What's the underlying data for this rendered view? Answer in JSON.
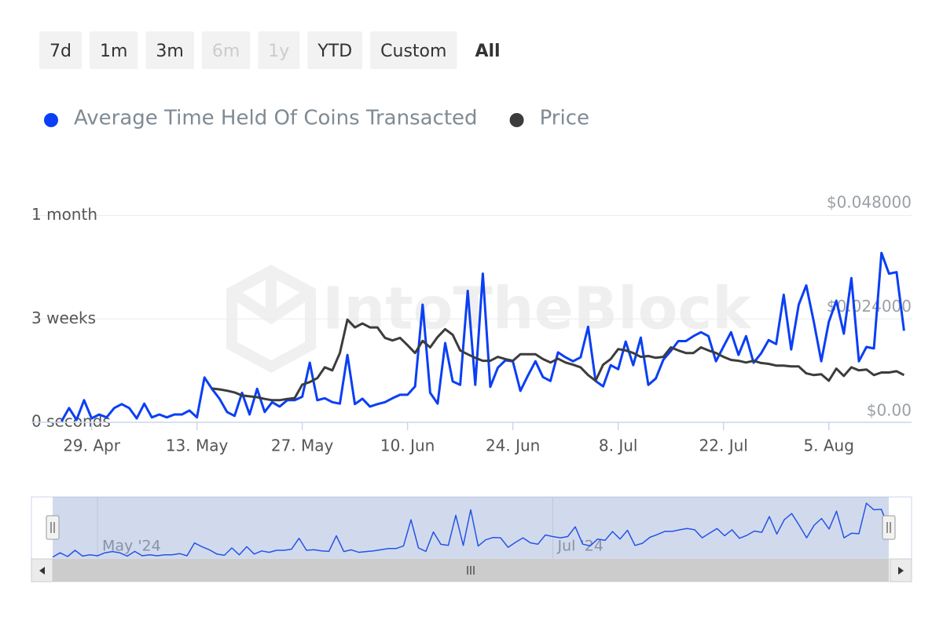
{
  "range_selector": {
    "buttons": [
      "7d",
      "1m",
      "3m",
      "6m",
      "1y",
      "YTD",
      "Custom",
      "All"
    ],
    "disabled": [
      3,
      4
    ],
    "selected": 7
  },
  "chart_data": {
    "type": "line",
    "watermark": "IntoTheBlock",
    "x": [
      "2024-04-25",
      "2024-04-26",
      "2024-04-27",
      "2024-04-28",
      "2024-04-29",
      "2024-04-30",
      "2024-05-01",
      "2024-05-02",
      "2024-05-03",
      "2024-05-04",
      "2024-05-05",
      "2024-05-06",
      "2024-05-07",
      "2024-05-08",
      "2024-05-09",
      "2024-05-10",
      "2024-05-11",
      "2024-05-12",
      "2024-05-13",
      "2024-05-14",
      "2024-05-15",
      "2024-05-16",
      "2024-05-17",
      "2024-05-18",
      "2024-05-19",
      "2024-05-20",
      "2024-05-21",
      "2024-05-22",
      "2024-05-23",
      "2024-05-24",
      "2024-05-25",
      "2024-05-26",
      "2024-05-27",
      "2024-05-28",
      "2024-05-29",
      "2024-05-30",
      "2024-05-31",
      "2024-06-01",
      "2024-06-02",
      "2024-06-03",
      "2024-06-04",
      "2024-06-05",
      "2024-06-06",
      "2024-06-07",
      "2024-06-08",
      "2024-06-09",
      "2024-06-10",
      "2024-06-11",
      "2024-06-12",
      "2024-06-13",
      "2024-06-14",
      "2024-06-15",
      "2024-06-16",
      "2024-06-17",
      "2024-06-18",
      "2024-06-19",
      "2024-06-20",
      "2024-06-21",
      "2024-06-22",
      "2024-06-23",
      "2024-06-24",
      "2024-06-25",
      "2024-06-26",
      "2024-06-27",
      "2024-06-28",
      "2024-06-29",
      "2024-06-30",
      "2024-07-01",
      "2024-07-02",
      "2024-07-03",
      "2024-07-04",
      "2024-07-05",
      "2024-07-06",
      "2024-07-07",
      "2024-07-08",
      "2024-07-09",
      "2024-07-10",
      "2024-07-11",
      "2024-07-12",
      "2024-07-13",
      "2024-07-14",
      "2024-07-15",
      "2024-07-16",
      "2024-07-17",
      "2024-07-18",
      "2024-07-19",
      "2024-07-20",
      "2024-07-21",
      "2024-07-22",
      "2024-07-23",
      "2024-07-24",
      "2024-07-25",
      "2024-07-26",
      "2024-07-27",
      "2024-07-28",
      "2024-07-29",
      "2024-07-30",
      "2024-07-31",
      "2024-08-01",
      "2024-08-02",
      "2024-08-03",
      "2024-08-04",
      "2024-08-05",
      "2024-08-06",
      "2024-08-07",
      "2024-08-08",
      "2024-08-09",
      "2024-08-10",
      "2024-08-11",
      "2024-08-12",
      "2024-08-13",
      "2024-08-14",
      "2024-08-15"
    ],
    "series": [
      {
        "name": "Average Time Held Of Coins Transacted",
        "color": "#0a3ff5",
        "values": [
          0.2,
          2.9,
          0.5,
          4.5,
          0.8,
          1.6,
          1.0,
          2.9,
          3.7,
          2.9,
          0.8,
          3.8,
          1.0,
          1.6,
          1.0,
          1.6,
          1.6,
          2.4,
          1.0,
          9.1,
          6.8,
          4.8,
          2.1,
          1.3,
          6.0,
          1.6,
          6.8,
          2.1,
          4.1,
          3.2,
          4.5,
          4.5,
          5.2,
          12.1,
          4.5,
          4.9,
          4.1,
          3.8,
          13.7,
          3.7,
          4.8,
          3.2,
          3.7,
          4.1,
          4.9,
          5.6,
          5.6,
          7.3,
          23.9,
          6.0,
          3.8,
          16.1,
          8.3,
          7.6,
          26.7,
          7.6,
          30.2,
          7.2,
          11.1,
          12.6,
          12.4,
          6.4,
          9.5,
          12.4,
          9.2,
          8.4,
          14.2,
          13.2,
          12.4,
          13.2,
          19.4,
          8.4,
          7.3,
          11.6,
          10.8,
          16.4,
          11.6,
          17.2,
          7.6,
          8.9,
          12.7,
          14.5,
          16.5,
          16.5,
          17.5,
          18.3,
          17.5,
          12.4,
          15.4,
          18.3,
          13.7,
          17.5,
          12.1,
          14.0,
          16.7,
          15.9,
          25.9,
          14.8,
          23.9,
          27.8,
          20.4,
          12.4,
          20.4,
          24.7,
          18.0,
          29.3,
          12.4,
          15.3,
          15.0,
          34.4,
          30.2,
          30.5,
          18.6
        ]
      },
      {
        "name": "Price",
        "color": "#3c3c3c",
        "axis": "y2",
        "values": [
          null,
          null,
          null,
          null,
          null,
          null,
          null,
          null,
          null,
          null,
          null,
          null,
          null,
          null,
          null,
          null,
          null,
          null,
          null,
          null,
          0.0078,
          0.0076,
          0.0073,
          0.0069,
          0.0062,
          0.006,
          0.0058,
          0.0054,
          0.0051,
          0.0051,
          0.0054,
          0.0056,
          0.0087,
          0.0093,
          0.0102,
          0.0127,
          0.012,
          0.016,
          0.0237,
          0.0219,
          0.0228,
          0.0219,
          0.0219,
          0.0195,
          0.0189,
          0.0195,
          0.0178,
          0.016,
          0.0188,
          0.0173,
          0.0197,
          0.0215,
          0.0202,
          0.0166,
          0.0157,
          0.0149,
          0.0142,
          0.0142,
          0.0151,
          0.0146,
          0.0142,
          0.0157,
          0.0157,
          0.0157,
          0.0146,
          0.0138,
          0.0147,
          0.0138,
          0.0133,
          0.0127,
          0.0109,
          0.0096,
          0.0133,
          0.0146,
          0.0169,
          0.0166,
          0.016,
          0.0151,
          0.0153,
          0.0149,
          0.0151,
          0.0173,
          0.0166,
          0.016,
          0.016,
          0.0173,
          0.0166,
          0.016,
          0.0151,
          0.0144,
          0.0142,
          0.0138,
          0.0142,
          0.0137,
          0.0135,
          0.0131,
          0.0131,
          0.0129,
          0.0129,
          0.0113,
          0.0109,
          0.0111,
          0.0096,
          0.0124,
          0.0107,
          0.0127,
          0.012,
          0.0122,
          0.0109,
          0.0115,
          0.0115,
          0.0118,
          0.0109
        ]
      }
    ],
    "xlim": [
      "2024-04-21",
      "2024-08-16"
    ],
    "xticks": [
      {
        "value": "2024-04-29",
        "label": "29. Apr"
      },
      {
        "value": "2024-05-13",
        "label": "13. May"
      },
      {
        "value": "2024-05-27",
        "label": "27. May"
      },
      {
        "value": "2024-06-10",
        "label": "10. Jun"
      },
      {
        "value": "2024-06-24",
        "label": "24. Jun"
      },
      {
        "value": "2024-07-08",
        "label": "8. Jul"
      },
      {
        "value": "2024-07-22",
        "label": "22. Jul"
      },
      {
        "value": "2024-08-05",
        "label": "5. Aug"
      }
    ],
    "ylim": [
      0,
      44
    ],
    "yticks": [
      {
        "value": 0,
        "label": "0 seconds"
      },
      {
        "value": 21,
        "label": "3 weeks"
      },
      {
        "value": 42,
        "label": "1 month"
      }
    ],
    "y2lim": [
      0,
      0.05
    ],
    "y2ticks": [
      {
        "value": 0,
        "label": "$0.00"
      },
      {
        "value": 0.024,
        "label": "$0.024000"
      },
      {
        "value": 0.048,
        "label": "$0.048000"
      }
    ],
    "grid": true,
    "navigator": {
      "xticks": [
        {
          "value": "2024-05-01",
          "label": "May '24"
        },
        {
          "value": "2024-07-01",
          "label": "Jul '24"
        }
      ]
    }
  }
}
